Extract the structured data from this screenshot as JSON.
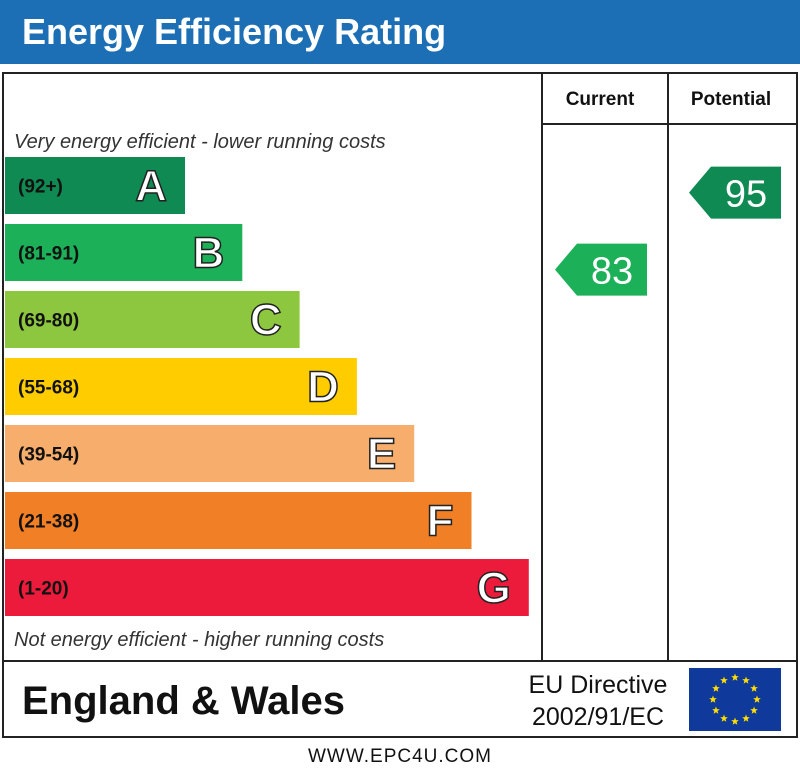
{
  "header": {
    "title": "Energy Efficiency Rating"
  },
  "columns": {
    "current": "Current",
    "potential": "Potential"
  },
  "chart_data": {
    "type": "bar",
    "top_label": "Very energy efficient - lower running costs",
    "bottom_label": "Not energy efficient - higher running costs",
    "bands": [
      {
        "letter": "A",
        "range": "(92+)",
        "color": "#0f8a52"
      },
      {
        "letter": "B",
        "range": "(81-91)",
        "color": "#1cb058"
      },
      {
        "letter": "C",
        "range": "(69-80)",
        "color": "#8dc63f"
      },
      {
        "letter": "D",
        "range": "(55-68)",
        "color": "#ffcc00"
      },
      {
        "letter": "E",
        "range": "(39-54)",
        "color": "#f7ad6b"
      },
      {
        "letter": "F",
        "range": "(21-38)",
        "color": "#f07f26"
      },
      {
        "letter": "G",
        "range": "(1-20)",
        "color": "#ec1b3b"
      }
    ],
    "current": {
      "value": 83,
      "label": "83",
      "color": "#1cb058"
    },
    "potential": {
      "value": 95,
      "label": "95",
      "color": "#0f8a52"
    }
  },
  "footer": {
    "region": "England & Wales",
    "directive_line1": "EU Directive",
    "directive_line2": "2002/91/EC",
    "eu_flag_icon": "eu-flag-icon",
    "url": "WWW.EPC4U.COM"
  }
}
